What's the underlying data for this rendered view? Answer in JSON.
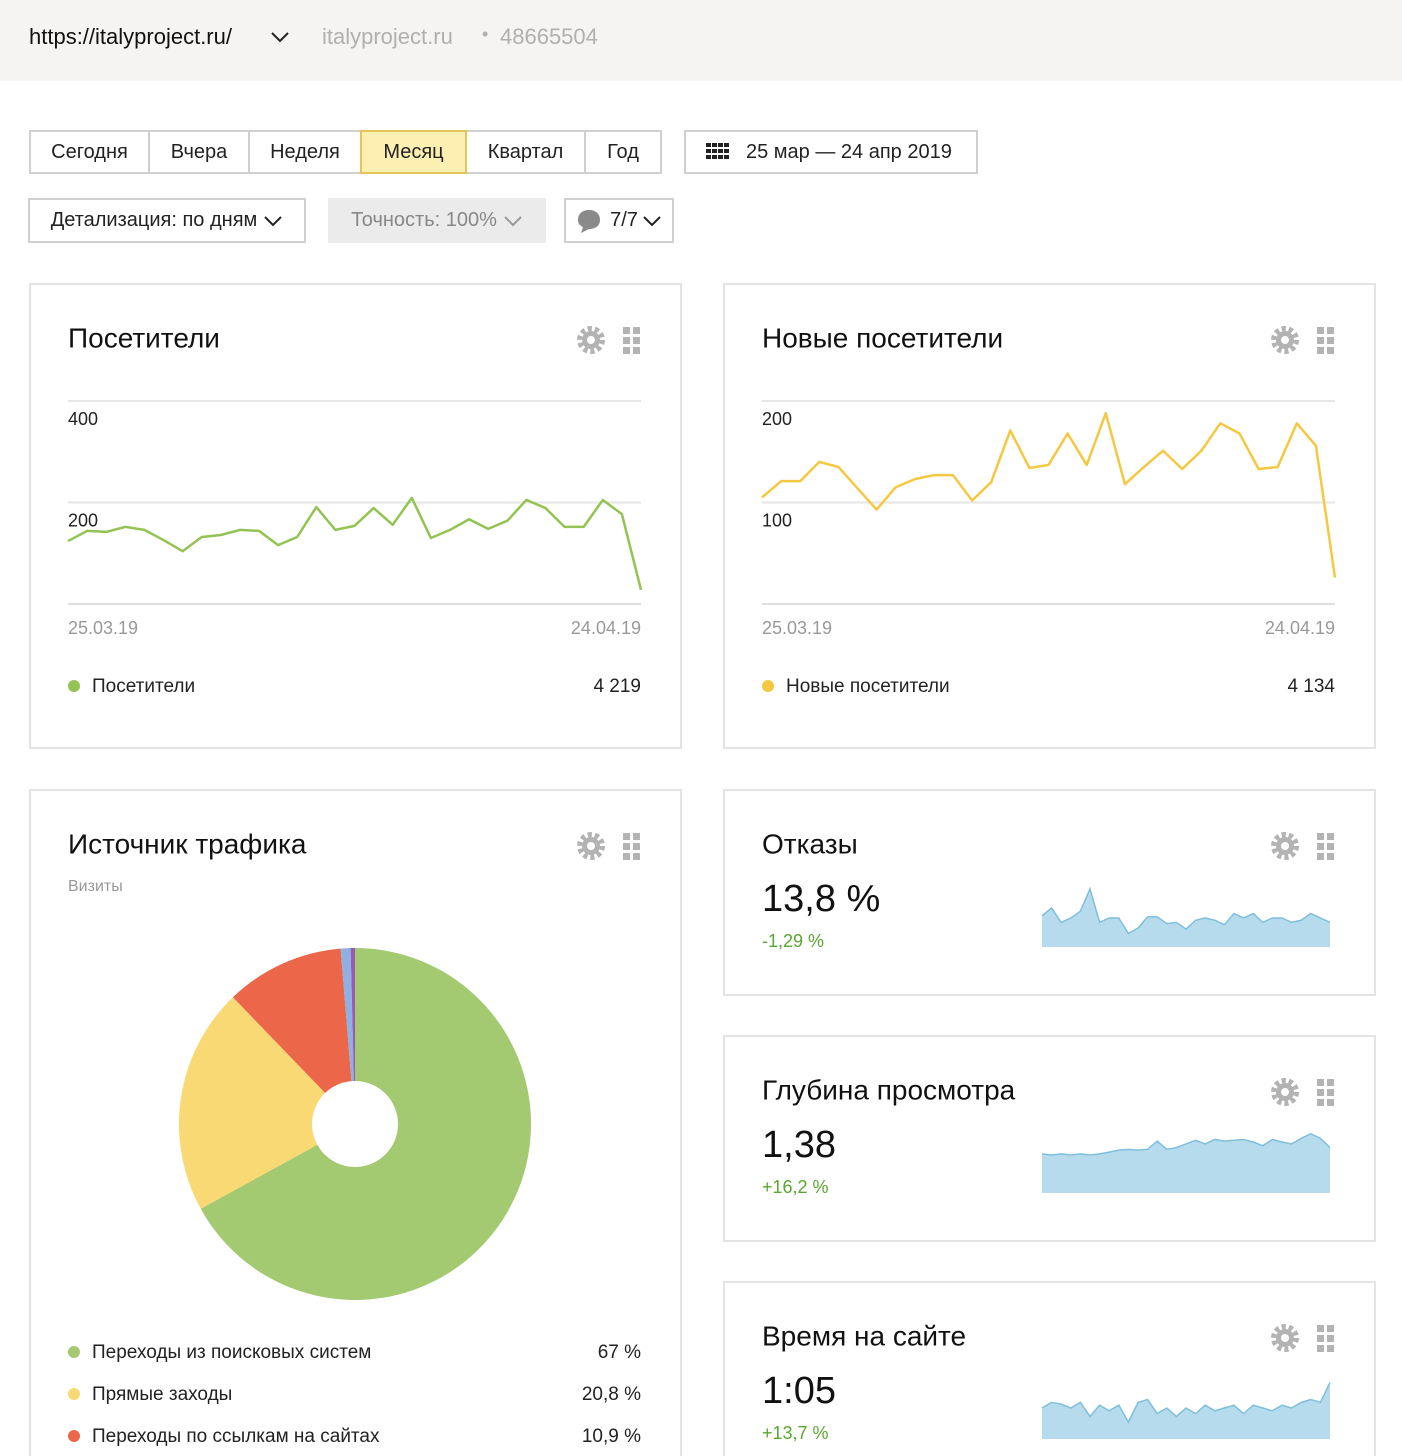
{
  "header": {
    "url": "https://italyproject.ru/",
    "site": "italyproject.ru",
    "separator": "•",
    "counter_id": "48665504"
  },
  "periods": [
    "Сегодня",
    "Вчера",
    "Неделя",
    "Месяц",
    "Квартал",
    "Год"
  ],
  "selected_period": 3,
  "date_range": "25 мар — 24 апр 2019",
  "detail": "Детализация: по дням",
  "accuracy": "Точность: 100%",
  "segments": "7/7",
  "widgets": [
    {
      "title": "Посетители",
      "total": "4 219",
      "chart": {
        "type": "line",
        "categories": [
          "25.03.19",
          null,
          null,
          null,
          null,
          null,
          null,
          null,
          null,
          null,
          null,
          null,
          null,
          null,
          null,
          null,
          null,
          null,
          null,
          null,
          null,
          null,
          null,
          null,
          null,
          null,
          null,
          null,
          null,
          null,
          "24.04.19"
        ],
        "series": [
          {
            "name": "Посетители",
            "color": "#92c353",
            "values": [
              124,
              144,
              142,
              152,
              146,
              126,
              104,
              132,
              136,
              146,
              144,
              116,
              132,
              191,
              146,
              154,
              189,
              156,
              209,
              130,
              146,
              167,
              148,
              164,
              205,
              189,
              152,
              152,
              205,
              177,
              28
            ]
          }
        ],
        "ylim": [
          0,
          400
        ],
        "yticks": [
          200,
          400
        ],
        "grid": true
      }
    },
    {
      "title": "Новые посетители",
      "total": "4 134",
      "chart": {
        "type": "line",
        "categories": [
          "25.03.19",
          null,
          null,
          null,
          null,
          null,
          null,
          null,
          null,
          null,
          null,
          null,
          null,
          null,
          null,
          null,
          null,
          null,
          null,
          null,
          null,
          null,
          null,
          null,
          null,
          null,
          null,
          null,
          null,
          null,
          "24.04.19"
        ],
        "series": [
          {
            "name": "Новые посетители",
            "color": "#f5c842",
            "values": [
              105,
              121,
              121,
              140,
              135,
              114,
              93,
              115,
              123,
              127,
              127,
              102,
              120,
              171,
              134,
              137,
              168,
              137,
              188,
              118,
              135,
              151,
              133,
              151,
              178,
              168,
              133,
              135,
              178,
              156,
              26
            ]
          }
        ],
        "ylim": [
          0,
          200
        ],
        "yticks": [
          100,
          200
        ],
        "grid": true
      }
    },
    {
      "title": "Источник трафика",
      "subtitle": "Визиты",
      "chart": {
        "type": "pie",
        "categories": [
          "Переходы из поисковых систем",
          "Прямые заходы",
          "Переходы по ссылкам на сайтах",
          null,
          null
        ],
        "values": [
          67,
          20.8,
          10.9,
          0.9,
          0.4
        ],
        "value_labels": [
          "67 %",
          "20,8 %",
          "10,9 %",
          null,
          null
        ],
        "colors": [
          "#a3c971",
          "#f8d974",
          "#ec664a",
          "#8fb0e0",
          "#9b59b6"
        ]
      }
    },
    {
      "title": "Отказы",
      "value": "13,8 %",
      "change": "-1,29 %",
      "chart": {
        "type": "area",
        "color": "#b6dbec",
        "ylim": [
          0,
          35
        ],
        "values": [
          17.6,
          22,
          13.9,
          16.4,
          20.2,
          32.8,
          13.9,
          16.4,
          16.4,
          7.6,
          10.7,
          17,
          17,
          13.2,
          13.9,
          10.1,
          15.1,
          16.4,
          15.1,
          12.6,
          18.9,
          16.4,
          18.9,
          13.9,
          16.4,
          16.4,
          13.9,
          15.1,
          18.9,
          16.4,
          13.9
        ]
      }
    },
    {
      "title": "Глубина просмотра",
      "value": "1,38",
      "change": "+16,2 %",
      "chart": {
        "type": "area",
        "color": "#b6dbec",
        "ylim": [
          0,
          2.2
        ],
        "values": [
          1.39,
          1.35,
          1.39,
          1.35,
          1.39,
          1.35,
          1.39,
          1.45,
          1.52,
          1.55,
          1.52,
          1.55,
          1.84,
          1.55,
          1.61,
          1.74,
          1.87,
          1.74,
          1.9,
          1.84,
          1.87,
          1.9,
          1.81,
          1.68,
          1.9,
          1.81,
          1.74,
          1.94,
          2.1,
          1.94,
          1.61
        ]
      }
    },
    {
      "title": "Время на сайте",
      "value": "1:05",
      "change": "+13,7 %",
      "chart": {
        "type": "area",
        "color": "#b6dbec",
        "ylim": [
          0,
          110
        ],
        "values": [
          55,
          65,
          62,
          55,
          65,
          40,
          60,
          50,
          60,
          30,
          65,
          70,
          45,
          55,
          40,
          55,
          45,
          60,
          50,
          55,
          60,
          45,
          60,
          55,
          50,
          60,
          55,
          65,
          70,
          65,
          100
        ]
      }
    }
  ]
}
